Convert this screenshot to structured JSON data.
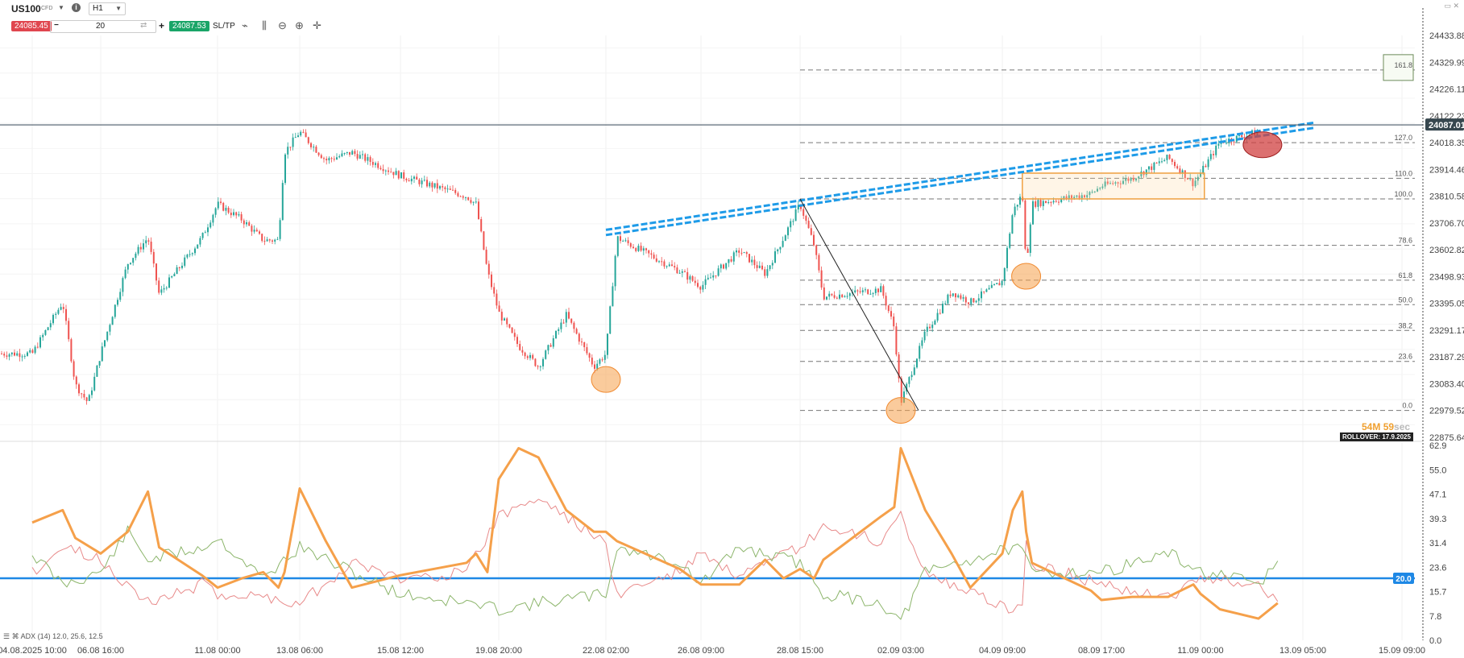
{
  "toolbar": {
    "symbol": "US100",
    "symbol_tag": "CFD",
    "info_icon": "info-icon",
    "timeframe": "H1",
    "bid": "24085.45",
    "quantity": "20",
    "ask": "24087.53",
    "sltp_label": "SL/TP",
    "tool_icons": [
      "line-chart-icon",
      "candlestick-icon",
      "zoom-out-icon",
      "zoom-in-icon",
      "crosshair-icon"
    ]
  },
  "price_axis": {
    "ticks": [
      "24433.88",
      "24329.99",
      "24226.11",
      "24122.23",
      "24018.35",
      "23914.46",
      "23810.58",
      "23706.70",
      "23602.82",
      "23498.93",
      "23395.05",
      "23291.17",
      "23187.29",
      "23083.40",
      "22979.52",
      "22875.64"
    ],
    "current_price": "24087.01"
  },
  "time_axis": {
    "labels": [
      "04.08.2025 10:00",
      "06.08 16:00",
      "11.08 00:00",
      "13.08 06:00",
      "15.08 12:00",
      "19.08 20:00",
      "22.08 02:00",
      "26.08 09:00",
      "28.08 15:00",
      "02.09 03:00",
      "04.09 09:00",
      "08.09 17:00",
      "11.09 00:00",
      "13.09 05:00",
      "15.09 09:00"
    ]
  },
  "fib_levels": [
    {
      "label": "161.8",
      "price": 24300
    },
    {
      "label": "127.0",
      "price": 24018
    },
    {
      "label": "110.0",
      "price": 23880
    },
    {
      "label": "100.0",
      "price": 23800
    },
    {
      "label": "78.6",
      "price": 23620
    },
    {
      "label": "61.8",
      "price": 23485
    },
    {
      "label": "50.0",
      "price": 23390
    },
    {
      "label": "38.2",
      "price": 23290
    },
    {
      "label": "23.6",
      "price": 23170
    },
    {
      "label": "0.0",
      "price": 22980
    }
  ],
  "timer": {
    "minutes": "54M",
    "seconds": "59sec"
  },
  "rollover": "ROLLOVER: 17.9.2025",
  "adx": {
    "legend": "ADX (14) 12.0, 25.6, 12.5",
    "ticks": [
      "62.9",
      "55.0",
      "47.1",
      "39.3",
      "31.4",
      "23.6",
      "15.7",
      "7.8",
      "0.0"
    ],
    "level_label": "20.0",
    "level": 20
  },
  "colors": {
    "up": "#26a69a",
    "down": "#ef5350",
    "trendline": "#1e9be8",
    "adx": "#f5a04a",
    "di_plus": "#8cb56b",
    "di_minus": "#e88a8a",
    "adx_level": "#1e88e5"
  },
  "chart_data": [
    {
      "type": "candlestick",
      "symbol": "US100",
      "ylim": [
        22875.64,
        24433.88
      ],
      "current_price": 24087.01,
      "close_path": [
        {
          "x": "04.08.2025 10:00",
          "y": 23200
        },
        {
          "x": "05.08 10:00",
          "y": 23400
        },
        {
          "x": "05.08 20:00",
          "y": 23080
        },
        {
          "x": "06.08 06:00",
          "y": 23010
        },
        {
          "x": "06.08 16:00",
          "y": 23200
        },
        {
          "x": "07.08 16:00",
          "y": 23550
        },
        {
          "x": "08.08 10:00",
          "y": 23650
        },
        {
          "x": "08.08 20:00",
          "y": 23430
        },
        {
          "x": "10.08 10:00",
          "y": 23650
        },
        {
          "x": "11.08 00:00",
          "y": 23780
        },
        {
          "x": "11.08 16:00",
          "y": 23720
        },
        {
          "x": "12.08 06:00",
          "y": 23640
        },
        {
          "x": "12.08 16:00",
          "y": 23640
        },
        {
          "x": "12.08 20:00",
          "y": 23980
        },
        {
          "x": "13.08 06:00",
          "y": 24060
        },
        {
          "x": "13.08 20:00",
          "y": 23950
        },
        {
          "x": "14.08 10:00",
          "y": 23980
        },
        {
          "x": "15.08 12:00",
          "y": 23890
        },
        {
          "x": "18.08 10:00",
          "y": 23810
        },
        {
          "x": "18.08 20:00",
          "y": 23780
        },
        {
          "x": "19.08 08:00",
          "y": 23520
        },
        {
          "x": "19.08 20:00",
          "y": 23360
        },
        {
          "x": "20.08 06:00",
          "y": 23230
        },
        {
          "x": "20.08 16:00",
          "y": 23150
        },
        {
          "x": "21.08 06:00",
          "y": 23350
        },
        {
          "x": "21.08 20:00",
          "y": 23150
        },
        {
          "x": "22.08 02:00",
          "y": 23200
        },
        {
          "x": "22.08 14:00",
          "y": 23650
        },
        {
          "x": "25.08 10:00",
          "y": 23520
        },
        {
          "x": "26.08 09:00",
          "y": 23460
        },
        {
          "x": "27.08 06:00",
          "y": 23600
        },
        {
          "x": "27.08 20:00",
          "y": 23510
        },
        {
          "x": "28.08 06:00",
          "y": 23650
        },
        {
          "x": "28.08 15:00",
          "y": 23780
        },
        {
          "x": "29.08 06:00",
          "y": 23620
        },
        {
          "x": "29.08 16:00",
          "y": 23420
        },
        {
          "x": "01.09 06:00",
          "y": 23450
        },
        {
          "x": "01.09 20:00",
          "y": 23300
        },
        {
          "x": "02.09 03:00",
          "y": 23010
        },
        {
          "x": "02.09 16:00",
          "y": 23280
        },
        {
          "x": "03.09 06:00",
          "y": 23440
        },
        {
          "x": "03.09 16:00",
          "y": 23400
        },
        {
          "x": "04.09 09:00",
          "y": 23480
        },
        {
          "x": "04.09 20:00",
          "y": 23750
        },
        {
          "x": "05.09 06:00",
          "y": 23820
        },
        {
          "x": "05.09 10:00",
          "y": 23530
        },
        {
          "x": "05.09 16:00",
          "y": 23780
        },
        {
          "x": "08.09 06:00",
          "y": 23820
        },
        {
          "x": "08.09 17:00",
          "y": 23850
        },
        {
          "x": "09.09 10:00",
          "y": 23880
        },
        {
          "x": "10.09 06:00",
          "y": 23960
        },
        {
          "x": "10.09 20:00",
          "y": 23860
        },
        {
          "x": "11.09 00:00",
          "y": 23900
        },
        {
          "x": "11.09 10:00",
          "y": 24020
        },
        {
          "x": "12.09 06:00",
          "y": 24060
        }
      ],
      "annotations": {
        "trendlines": [
          {
            "from": {
              "x": "22.08 02:00",
              "y": 23680
            },
            "to": {
              "x": "12.09 16:00",
              "y": 24080
            }
          },
          {
            "from": {
              "x": "22.08 02:00",
              "y": 23660
            },
            "to": {
              "x": "12.09 16:00",
              "y": 24060
            }
          }
        ],
        "fib_swing": {
          "from": {
            "x": "28.08 15:00",
            "y": 23800
          },
          "to": {
            "x": "02.09 06:00",
            "y": 22980
          }
        },
        "range_box": {
          "x1": "05.09 06:00",
          "x2": "11.09 02:00",
          "y1": 23800,
          "y2": 23900
        },
        "highlight_circles": [
          {
            "x": "22.08 02:00",
            "y": 23100,
            "color": "#f5a04a"
          },
          {
            "x": "02.09 03:00",
            "y": 22980,
            "color": "#f5a04a"
          },
          {
            "x": "05.09 10:00",
            "y": 23500,
            "color": "#f5a04a"
          },
          {
            "x": "12.09 06:00",
            "y": 24010,
            "color": "#d04040"
          }
        ]
      }
    },
    {
      "type": "line",
      "indicator": "ADX (14)",
      "ylim": [
        0,
        62.9
      ],
      "series": [
        {
          "name": "ADX",
          "points": [
            {
              "x": "04.08.2025 10:00",
              "y": 38
            },
            {
              "x": "05.08 10:00",
              "y": 42
            },
            {
              "x": "05.08 20:00",
              "y": 33
            },
            {
              "x": "06.08 16:00",
              "y": 28
            },
            {
              "x": "07.08 16:00",
              "y": 35
            },
            {
              "x": "08.08 10:00",
              "y": 48
            },
            {
              "x": "08.08 20:00",
              "y": 30
            },
            {
              "x": "10.08 10:00",
              "y": 21
            },
            {
              "x": "11.08 00:00",
              "y": 17
            },
            {
              "x": "11.08 16:00",
              "y": 20
            },
            {
              "x": "12.08 06:00",
              "y": 22
            },
            {
              "x": "12.08 16:00",
              "y": 17
            },
            {
              "x": "12.08 20:00",
              "y": 22
            },
            {
              "x": "13.08 06:00",
              "y": 49
            },
            {
              "x": "13.08 20:00",
              "y": 32
            },
            {
              "x": "14.08 10:00",
              "y": 17
            },
            {
              "x": "15.08 12:00",
              "y": 21
            },
            {
              "x": "18.08 10:00",
              "y": 25
            },
            {
              "x": "18.08 20:00",
              "y": 28
            },
            {
              "x": "19.08 08:00",
              "y": 22
            },
            {
              "x": "19.08 20:00",
              "y": 52
            },
            {
              "x": "20.08 06:00",
              "y": 62
            },
            {
              "x": "20.08 16:00",
              "y": 59
            },
            {
              "x": "21.08 06:00",
              "y": 42
            },
            {
              "x": "21.08 20:00",
              "y": 35
            },
            {
              "x": "22.08 02:00",
              "y": 35
            },
            {
              "x": "22.08 14:00",
              "y": 32
            },
            {
              "x": "25.08 10:00",
              "y": 23
            },
            {
              "x": "26.08 09:00",
              "y": 18
            },
            {
              "x": "27.08 06:00",
              "y": 18
            },
            {
              "x": "27.08 20:00",
              "y": 26
            },
            {
              "x": "28.08 06:00",
              "y": 20
            },
            {
              "x": "28.08 15:00",
              "y": 23
            },
            {
              "x": "29.08 06:00",
              "y": 20
            },
            {
              "x": "29.08 16:00",
              "y": 26
            },
            {
              "x": "01.09 06:00",
              "y": 40
            },
            {
              "x": "01.09 20:00",
              "y": 43
            },
            {
              "x": "02.09 03:00",
              "y": 62
            },
            {
              "x": "02.09 16:00",
              "y": 42
            },
            {
              "x": "03.09 06:00",
              "y": 28
            },
            {
              "x": "03.09 16:00",
              "y": 17
            },
            {
              "x": "04.09 09:00",
              "y": 28
            },
            {
              "x": "04.09 20:00",
              "y": 42
            },
            {
              "x": "05.09 06:00",
              "y": 48
            },
            {
              "x": "05.09 10:00",
              "y": 35
            },
            {
              "x": "05.09 16:00",
              "y": 25
            },
            {
              "x": "08.09 06:00",
              "y": 16
            },
            {
              "x": "08.09 17:00",
              "y": 13
            },
            {
              "x": "09.09 10:00",
              "y": 14
            },
            {
              "x": "10.09 06:00",
              "y": 14
            },
            {
              "x": "10.09 20:00",
              "y": 18
            },
            {
              "x": "11.09 00:00",
              "y": 15
            },
            {
              "x": "11.09 10:00",
              "y": 10
            },
            {
              "x": "12.09 06:00",
              "y": 7
            },
            {
              "x": "12.09 16:00",
              "y": 12.0
            }
          ]
        },
        {
          "name": "+DI",
          "points": [
            {
              "x": "04.08.2025 10:00",
              "y": 28
            },
            {
              "x": "05.08 10:00",
              "y": 18
            },
            {
              "x": "06.08 16:00",
              "y": 22
            },
            {
              "x": "07.08 16:00",
              "y": 35
            },
            {
              "x": "08.08 10:00",
              "y": 26
            },
            {
              "x": "10.08 10:00",
              "y": 30
            },
            {
              "x": "11.08 00:00",
              "y": 33
            },
            {
              "x": "12.08 06:00",
              "y": 20
            },
            {
              "x": "13.08 06:00",
              "y": 30
            },
            {
              "x": "14.08 10:00",
              "y": 22
            },
            {
              "x": "15.08 12:00",
              "y": 15
            },
            {
              "x": "18.08 10:00",
              "y": 12
            },
            {
              "x": "19.08 20:00",
              "y": 10
            },
            {
              "x": "20.08 16:00",
              "y": 12
            },
            {
              "x": "22.08 02:00",
              "y": 15
            },
            {
              "x": "22.08 14:00",
              "y": 30
            },
            {
              "x": "25.08 10:00",
              "y": 25
            },
            {
              "x": "26.08 09:00",
              "y": 18
            },
            {
              "x": "27.08 06:00",
              "y": 30
            },
            {
              "x": "28.08 15:00",
              "y": 25
            },
            {
              "x": "29.08 16:00",
              "y": 15
            },
            {
              "x": "01.09 06:00",
              "y": 12
            },
            {
              "x": "02.09 03:00",
              "y": 6
            },
            {
              "x": "02.09 16:00",
              "y": 22
            },
            {
              "x": "03.09 16:00",
              "y": 26
            },
            {
              "x": "04.09 20:00",
              "y": 30
            },
            {
              "x": "05.09 06:00",
              "y": 28
            },
            {
              "x": "05.09 16:00",
              "y": 22
            },
            {
              "x": "08.09 17:00",
              "y": 22
            },
            {
              "x": "10.09 06:00",
              "y": 28
            },
            {
              "x": "11.09 00:00",
              "y": 22
            },
            {
              "x": "12.09 06:00",
              "y": 18
            },
            {
              "x": "12.09 16:00",
              "y": 25.6
            }
          ]
        },
        {
          "name": "-DI",
          "points": [
            {
              "x": "04.08.2025 10:00",
              "y": 22
            },
            {
              "x": "05.08 10:00",
              "y": 30
            },
            {
              "x": "06.08 16:00",
              "y": 26
            },
            {
              "x": "08.08 10:00",
              "y": 12
            },
            {
              "x": "10.08 10:00",
              "y": 18
            },
            {
              "x": "11.08 00:00",
              "y": 15
            },
            {
              "x": "12.08 06:00",
              "y": 14
            },
            {
              "x": "13.08 06:00",
              "y": 12
            },
            {
              "x": "14.08 10:00",
              "y": 25
            },
            {
              "x": "15.08 12:00",
              "y": 20
            },
            {
              "x": "18.08 10:00",
              "y": 22
            },
            {
              "x": "19.08 20:00",
              "y": 40
            },
            {
              "x": "20.08 16:00",
              "y": 46
            },
            {
              "x": "21.08 20:00",
              "y": 34
            },
            {
              "x": "22.08 02:00",
              "y": 30
            },
            {
              "x": "22.08 14:00",
              "y": 15
            },
            {
              "x": "25.08 10:00",
              "y": 22
            },
            {
              "x": "26.08 09:00",
              "y": 28
            },
            {
              "x": "27.08 06:00",
              "y": 20
            },
            {
              "x": "28.08 15:00",
              "y": 30
            },
            {
              "x": "29.08 16:00",
              "y": 36
            },
            {
              "x": "01.09 06:00",
              "y": 32
            },
            {
              "x": "02.09 03:00",
              "y": 40
            },
            {
              "x": "02.09 16:00",
              "y": 22
            },
            {
              "x": "03.09 16:00",
              "y": 15
            },
            {
              "x": "04.09 20:00",
              "y": 10
            },
            {
              "x": "05.09 06:00",
              "y": 12
            },
            {
              "x": "05.09 10:00",
              "y": 32
            },
            {
              "x": "05.09 16:00",
              "y": 25
            },
            {
              "x": "08.09 17:00",
              "y": 18
            },
            {
              "x": "10.09 06:00",
              "y": 14
            },
            {
              "x": "11.09 00:00",
              "y": 20
            },
            {
              "x": "12.09 06:00",
              "y": 18
            },
            {
              "x": "12.09 16:00",
              "y": 12.5
            }
          ]
        }
      ],
      "reference_line": 20
    }
  ]
}
